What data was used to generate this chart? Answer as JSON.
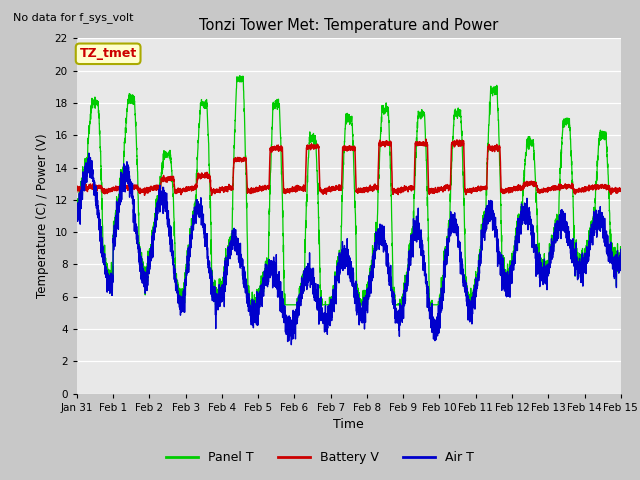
{
  "title": "Tonzi Tower Met: Temperature and Power",
  "top_left_text": "No data for f_sys_volt",
  "ylabel": "Temperature (C) / Power (V)",
  "xlabel": "Time",
  "ylim": [
    0,
    22
  ],
  "yticks": [
    0,
    2,
    4,
    6,
    8,
    10,
    12,
    14,
    16,
    18,
    20,
    22
  ],
  "xtick_labels": [
    "Jan 31",
    "Feb 1",
    "Feb 2",
    "Feb 3",
    "Feb 4",
    "Feb 5",
    "Feb 6",
    "Feb 7",
    "Feb 8",
    "Feb 9",
    "Feb 10",
    "Feb 11",
    "Feb 12",
    "Feb 13",
    "Feb 14",
    "Feb 15"
  ],
  "fig_bg": "#c8c8c8",
  "axes_bg": "#e8e8e8",
  "grid_color": "#ffffff",
  "panel_t_color": "#00cc00",
  "battery_v_color": "#cc0000",
  "air_t_color": "#0000cc",
  "legend_items": [
    "Panel T",
    "Battery V",
    "Air T"
  ],
  "tztmet_label": "TZ_tmet",
  "tztmet_bg": "#ffffcc",
  "tztmet_border": "#aaaa00",
  "tztmet_text_color": "#cc0000"
}
